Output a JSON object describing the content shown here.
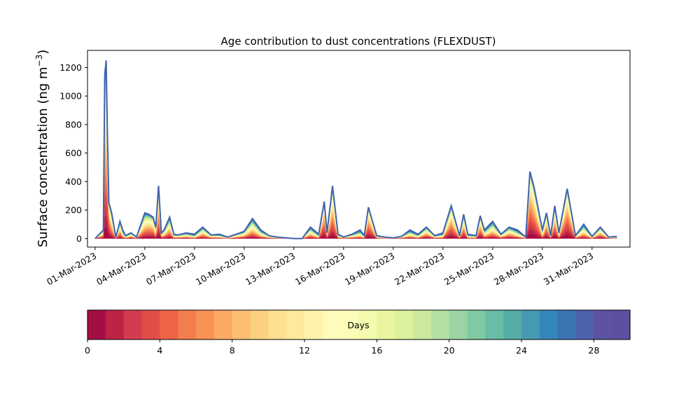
{
  "chart_data": {
    "type": "area",
    "title": "Age contribution to dust concentrations (FLEXDUST)",
    "ylabel": "Surface concentration (ng m",
    "ylabel_sup": "−3",
    "ylabel_close": ")",
    "xlabel": "",
    "ylim": [
      -60,
      1320
    ],
    "yticks": [
      0,
      200,
      400,
      600,
      800,
      1000,
      1200
    ],
    "xlim": [
      "2023-02-28T13:00",
      "2023-04-02T07:00"
    ],
    "xticks": [
      "01-Mar-2023",
      "04-Mar-2023",
      "07-Mar-2023",
      "10-Mar-2023",
      "13-Mar-2023",
      "16-Mar-2023",
      "19-Mar-2023",
      "22-Mar-2023",
      "25-Mar-2023",
      "28-Mar-2023",
      "31-Mar-2023"
    ],
    "grid": false,
    "stacking": "cumulative age bins (days 0-30)",
    "total": {
      "x": [
        "2023-03-01T00:00",
        "2023-03-01T12:00",
        "2023-03-01T14:00",
        "2023-03-01T16:00",
        "2023-03-01T18:00",
        "2023-03-01T20:00",
        "2023-03-02T00:00",
        "2023-03-02T06:00",
        "2023-03-02T10:00",
        "2023-03-02T12:00",
        "2023-03-02T16:00",
        "2023-03-02T20:00",
        "2023-03-03T04:00",
        "2023-03-03T12:00",
        "2023-03-04T00:00",
        "2023-03-04T06:00",
        "2023-03-04T12:00",
        "2023-03-04T16:00",
        "2023-03-04T20:00",
        "2023-03-05T00:00",
        "2023-03-05T04:00",
        "2023-03-05T12:00",
        "2023-03-05T18:00",
        "2023-03-06T00:00",
        "2023-03-06T12:00",
        "2023-03-07T00:00",
        "2023-03-07T12:00",
        "2023-03-08T00:00",
        "2023-03-08T12:00",
        "2023-03-09T00:00",
        "2023-03-09T12:00",
        "2023-03-10T00:00",
        "2023-03-10T12:00",
        "2023-03-11T00:00",
        "2023-03-11T12:00",
        "2023-03-12T00:00",
        "2023-03-12T12:00",
        "2023-03-13T00:00",
        "2023-03-13T12:00",
        "2023-03-14T00:00",
        "2023-03-14T12:00",
        "2023-03-14T20:00",
        "2023-03-15T00:00",
        "2023-03-15T08:00",
        "2023-03-15T16:00",
        "2023-03-16T00:00",
        "2023-03-16T12:00",
        "2023-03-17T00:00",
        "2023-03-17T06:00",
        "2023-03-17T12:00",
        "2023-03-18T00:00",
        "2023-03-18T12:00",
        "2023-03-19T00:00",
        "2023-03-19T12:00",
        "2023-03-20T00:00",
        "2023-03-20T12:00",
        "2023-03-21T00:00",
        "2023-03-21T12:00",
        "2023-03-22T00:00",
        "2023-03-22T12:00",
        "2023-03-23T00:00",
        "2023-03-23T06:00",
        "2023-03-23T12:00",
        "2023-03-24T00:00",
        "2023-03-24T06:00",
        "2023-03-24T12:00",
        "2023-03-25T00:00",
        "2023-03-25T12:00",
        "2023-03-26T00:00",
        "2023-03-26T12:00",
        "2023-03-27T00:00",
        "2023-03-27T06:00",
        "2023-03-27T12:00",
        "2023-03-28T00:00",
        "2023-03-28T06:00",
        "2023-03-28T12:00",
        "2023-03-28T18:00",
        "2023-03-29T00:00",
        "2023-03-29T12:00",
        "2023-03-30T00:00",
        "2023-03-30T12:00",
        "2023-03-31T00:00",
        "2023-03-31T12:00",
        "2023-04-01T00:00",
        "2023-04-01T12:00"
      ],
      "values": [
        0,
        60,
        1150,
        1250,
        700,
        250,
        180,
        10,
        80,
        120,
        60,
        20,
        40,
        10,
        180,
        170,
        150,
        80,
        370,
        40,
        60,
        150,
        30,
        25,
        40,
        30,
        80,
        25,
        30,
        10,
        30,
        50,
        140,
        60,
        20,
        10,
        5,
        0,
        0,
        80,
        30,
        260,
        40,
        370,
        30,
        10,
        30,
        60,
        20,
        220,
        20,
        10,
        5,
        15,
        60,
        30,
        80,
        20,
        40,
        230,
        20,
        170,
        30,
        20,
        160,
        60,
        120,
        30,
        80,
        60,
        10,
        470,
        360,
        60,
        180,
        20,
        230,
        40,
        350,
        20,
        100,
        15,
        80,
        10,
        15
      ]
    },
    "colorbar": {
      "label": "Days",
      "range": [
        0,
        30
      ],
      "ticks": [
        0,
        4,
        8,
        12,
        16,
        20,
        24,
        28
      ],
      "bins": 30,
      "colormap": "Spectral",
      "colors": [
        "#a50e45",
        "#be2344",
        "#d33c4e",
        "#e24d4a",
        "#ee6445",
        "#f47d4d",
        "#f89356",
        "#fca966",
        "#fdbe72",
        "#fdd081",
        "#fee090",
        "#fee99c",
        "#fff2aa",
        "#fffbb9",
        "#fbfdb8",
        "#f4faae",
        "#eaf69f",
        "#dbf19d",
        "#cbe99e",
        "#b3e0a2",
        "#9ad4a4",
        "#80c9a5",
        "#69bca5",
        "#55aca7",
        "#4599b1",
        "#3487bc",
        "#3c73b2",
        "#4e62ad",
        "#5d52a3",
        "#5e4fa2"
      ]
    },
    "line_color": "#4062b0"
  }
}
